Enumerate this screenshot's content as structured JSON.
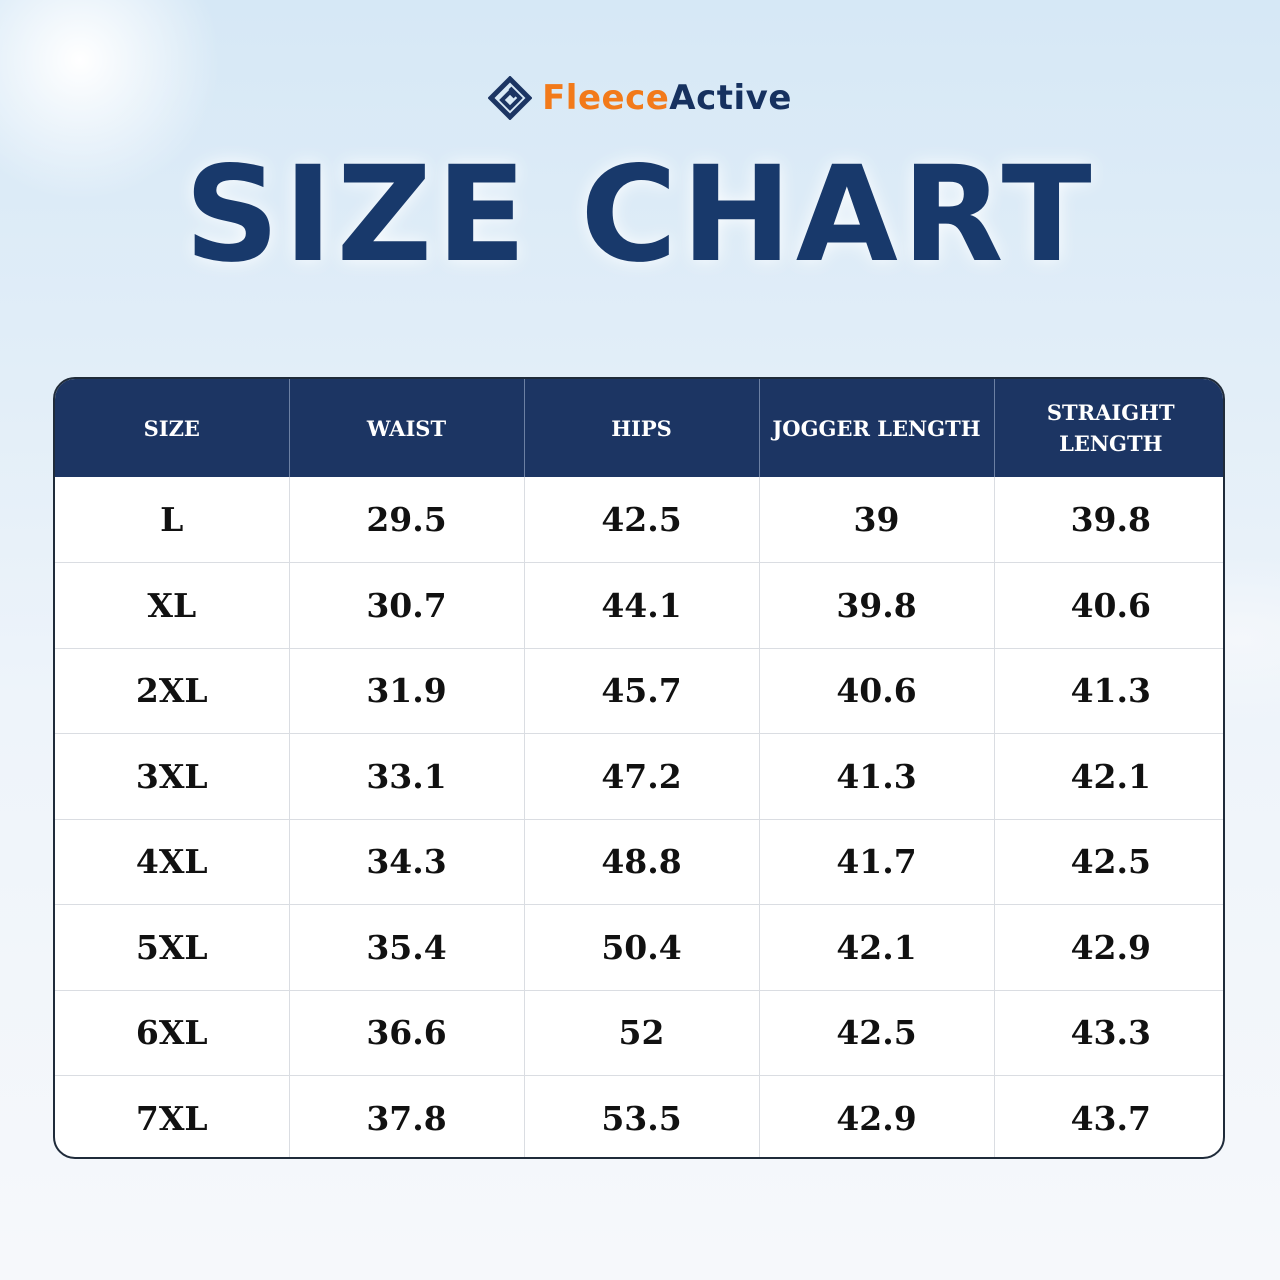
{
  "brand": {
    "logo_icon": "fleeceactive-logo-icon",
    "name_part1": "Fleece",
    "name_part2": "Active",
    "colors": {
      "orange": "#f27a1a",
      "navy": "#16315f"
    }
  },
  "title": "SIZE CHART",
  "table": {
    "header_color": "#1c3563",
    "columns": [
      "SIZE",
      "WAIST",
      "HIPS",
      "JOGGER LENGTH",
      "STRAIGHT LENGTH"
    ],
    "rows": [
      [
        "L",
        "29.5",
        "42.5",
        "39",
        "39.8"
      ],
      [
        "XL",
        "30.7",
        "44.1",
        "39.8",
        "40.6"
      ],
      [
        "2XL",
        "31.9",
        "45.7",
        "40.6",
        "41.3"
      ],
      [
        "3XL",
        "33.1",
        "47.2",
        "41.3",
        "42.1"
      ],
      [
        "4XL",
        "34.3",
        "48.8",
        "41.7",
        "42.5"
      ],
      [
        "5XL",
        "35.4",
        "50.4",
        "42.1",
        "42.9"
      ],
      [
        "6XL",
        "36.6",
        "52",
        "42.5",
        "43.3"
      ],
      [
        "7XL",
        "37.8",
        "53.5",
        "42.9",
        "43.7"
      ]
    ]
  }
}
